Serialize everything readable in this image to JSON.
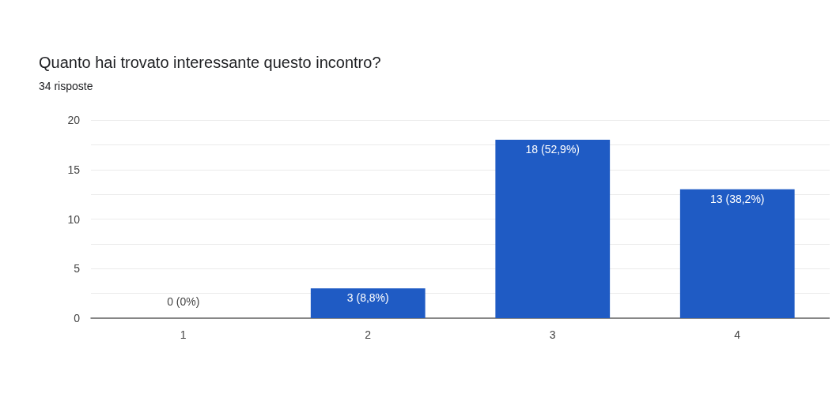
{
  "chart_data": {
    "type": "bar",
    "title": "Quanto hai trovato interessante questo incontro?",
    "subtitle": "34 risposte",
    "categories": [
      "1",
      "2",
      "3",
      "4"
    ],
    "values": [
      0,
      3,
      18,
      13
    ],
    "value_labels": [
      "0 (0%)",
      "3 (8,8%)",
      "18 (52,9%)",
      "13 (38,2%)"
    ],
    "color": "#1f5bc4",
    "ylim": [
      0,
      20
    ],
    "yticks": [
      0,
      {
        "value": 2.5,
        "label": null
      },
      5,
      {
        "value": 7.5,
        "label": null
      },
      10,
      {
        "value": 12.5,
        "label": null
      },
      15,
      {
        "value": 17.5,
        "label": null
      },
      20
    ],
    "grid": "y"
  }
}
